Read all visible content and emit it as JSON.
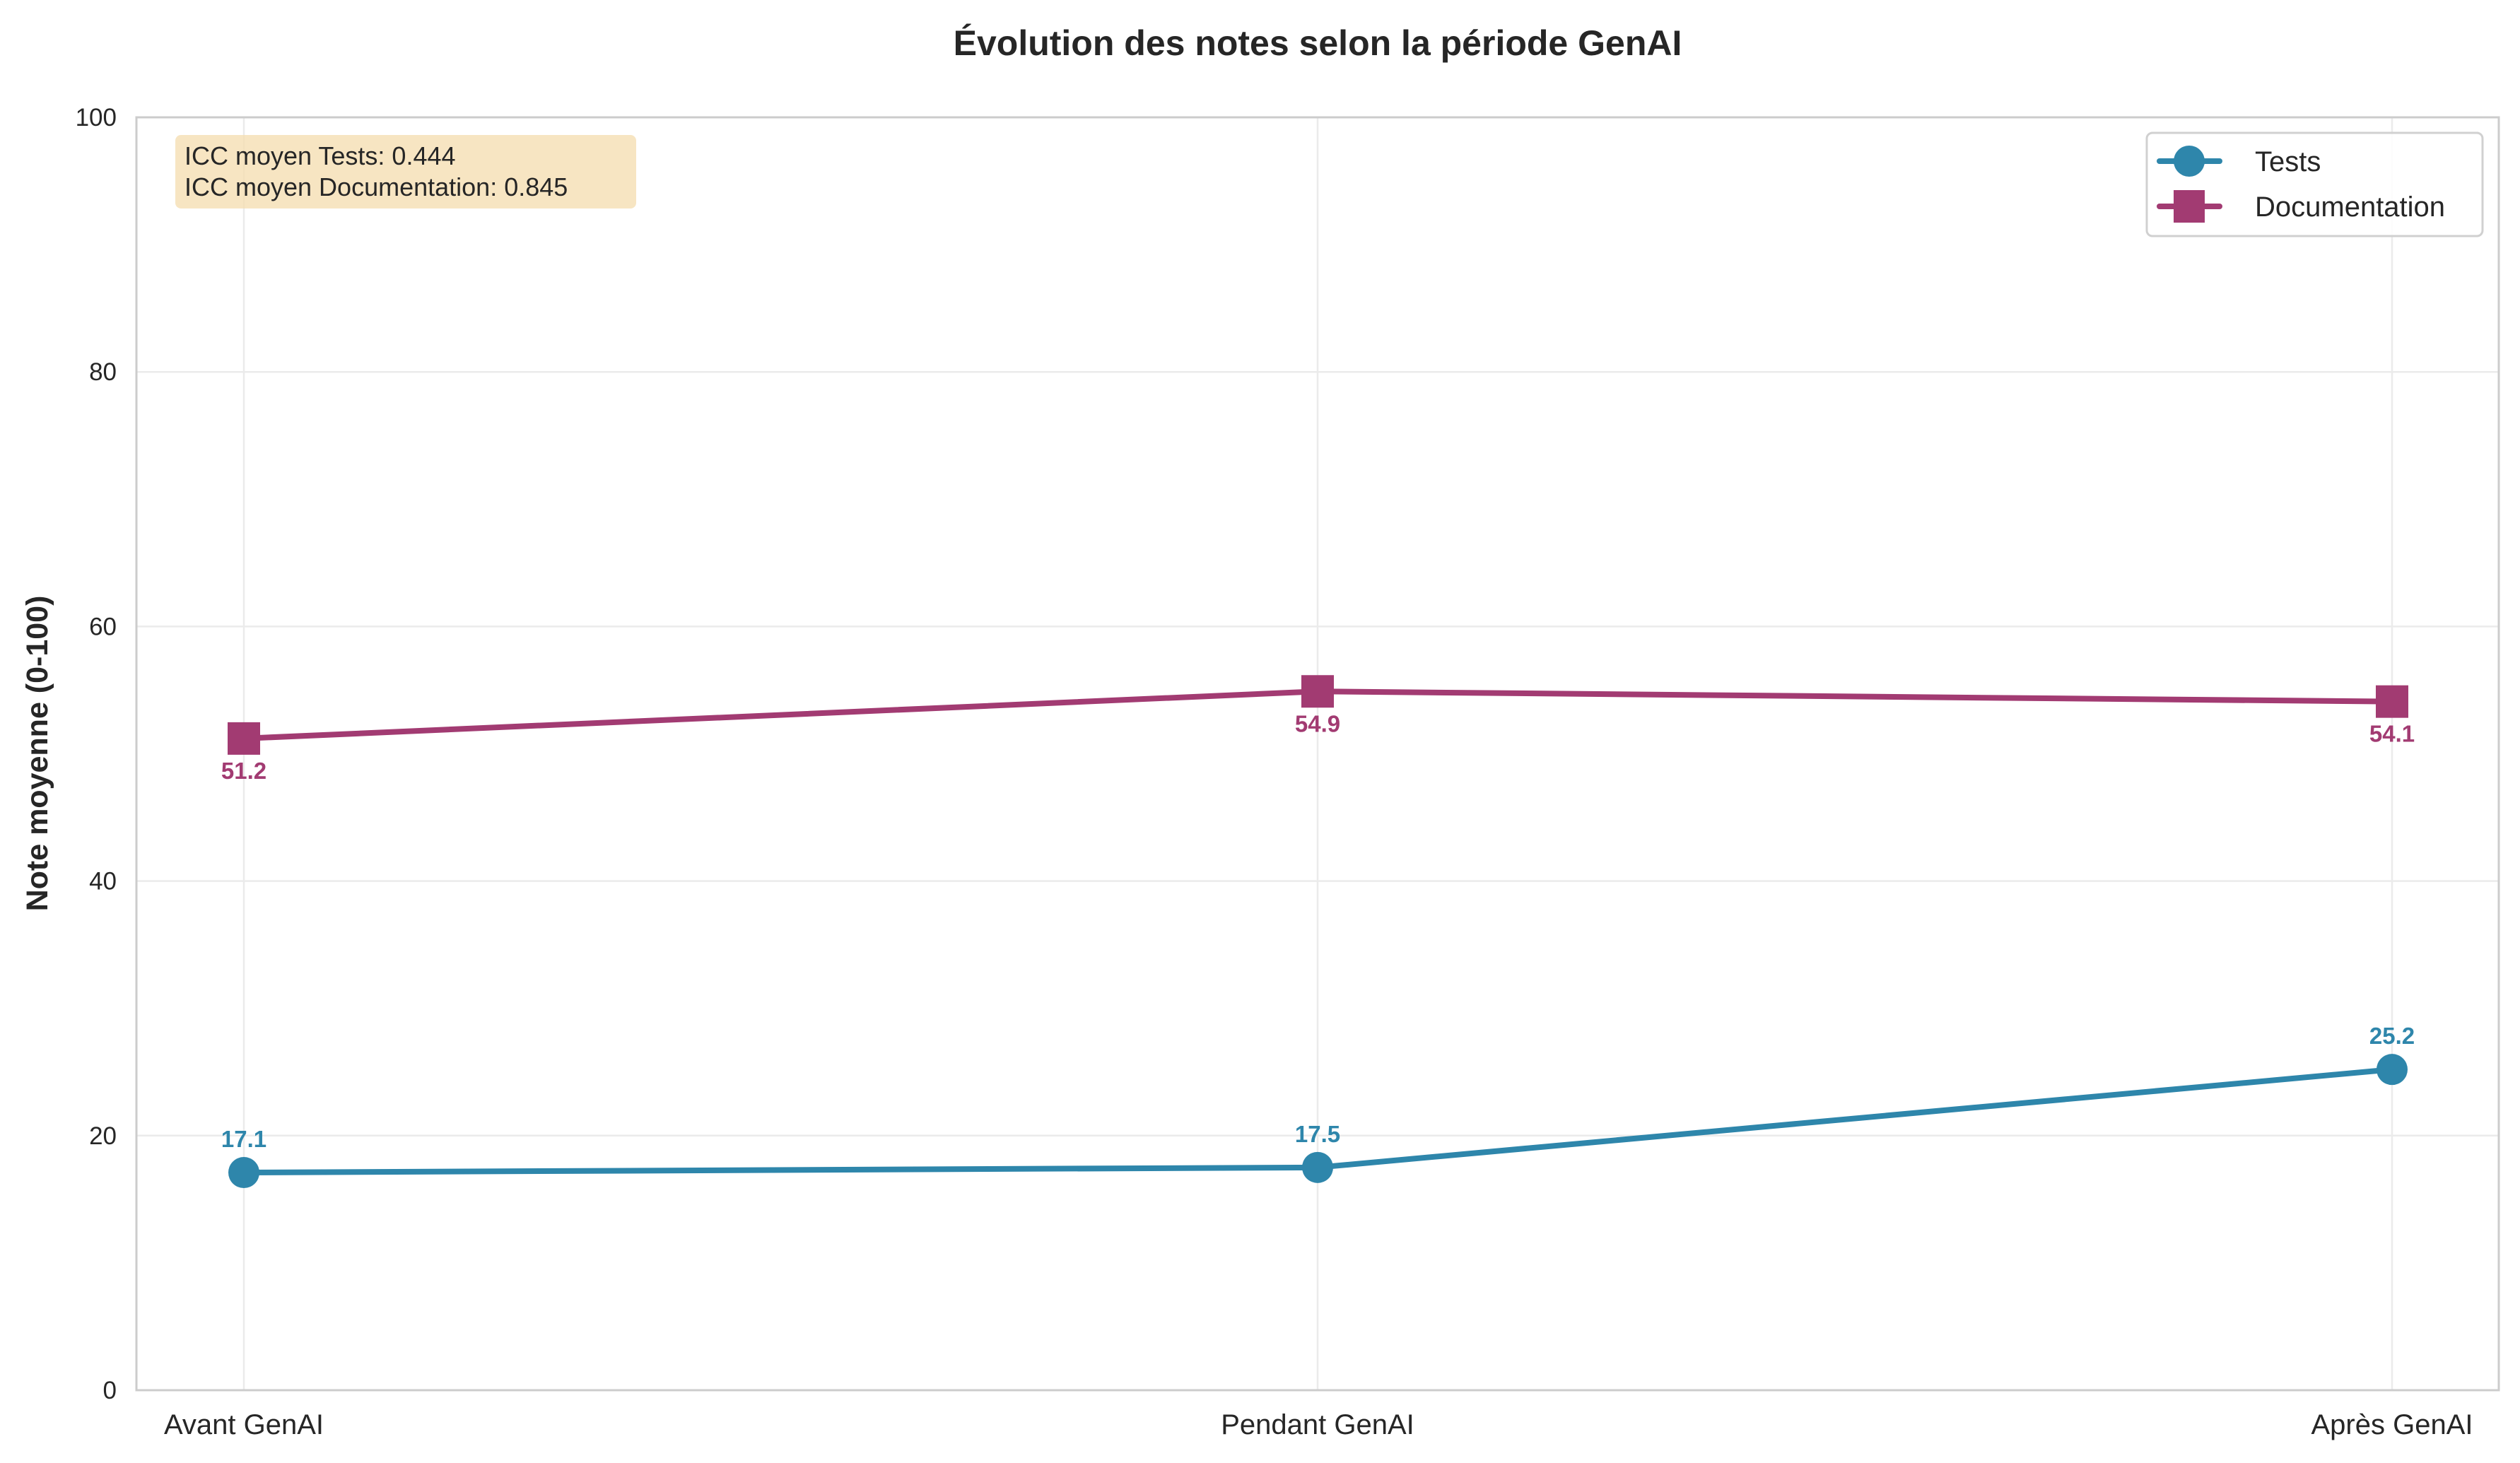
{
  "chart_data": {
    "type": "line",
    "title": "Évolution des notes selon la période GenAI",
    "xlabel": "",
    "ylabel": "Note moyenne (0-100)",
    "categories": [
      "Avant GenAI",
      "Pendant GenAI",
      "Après GenAI"
    ],
    "ylim": [
      0,
      100
    ],
    "yticks": [
      0,
      20,
      40,
      60,
      80,
      100
    ],
    "grid": true,
    "legend_position": "upper right",
    "series": [
      {
        "name": "Tests",
        "values": [
          17.1,
          17.5,
          25.2
        ],
        "color": "#2e86ab",
        "marker": "circle",
        "label_position": "above"
      },
      {
        "name": "Documentation",
        "values": [
          51.2,
          54.9,
          54.1
        ],
        "color": "#a23b72",
        "marker": "square",
        "label_position": "below"
      }
    ],
    "annotations": [
      "ICC moyen Tests: 0.444",
      "ICC moyen Documentation: 0.845"
    ],
    "annotation_bg": "#f5deb3"
  }
}
